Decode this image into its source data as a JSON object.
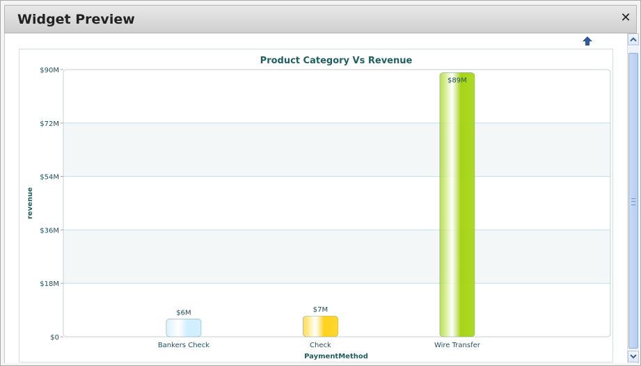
{
  "window": {
    "title": "Widget Preview",
    "close_icon": "close-icon",
    "scroll_up_icon": "arrow-up-icon"
  },
  "chart_data": {
    "type": "bar",
    "title": "Product Category Vs Revenue",
    "xlabel": "PaymentMethod",
    "ylabel": "revenue",
    "categories": [
      "Bankers Check",
      "Check",
      "Wire Transfer"
    ],
    "values": [
      6,
      7,
      89
    ],
    "value_labels": [
      "$6M",
      "$7M",
      "$89M"
    ],
    "ylim": [
      0,
      90
    ],
    "yticks": [
      0,
      18,
      36,
      54,
      72,
      90
    ],
    "ytick_labels": [
      "$0",
      "$18M",
      "$36M",
      "$54M",
      "$72M",
      "$90M"
    ],
    "grid": true,
    "bar_colors": [
      "#cfeeff",
      "#ffd21a",
      "#a6d414"
    ],
    "title_color": "#1f5f5f"
  }
}
